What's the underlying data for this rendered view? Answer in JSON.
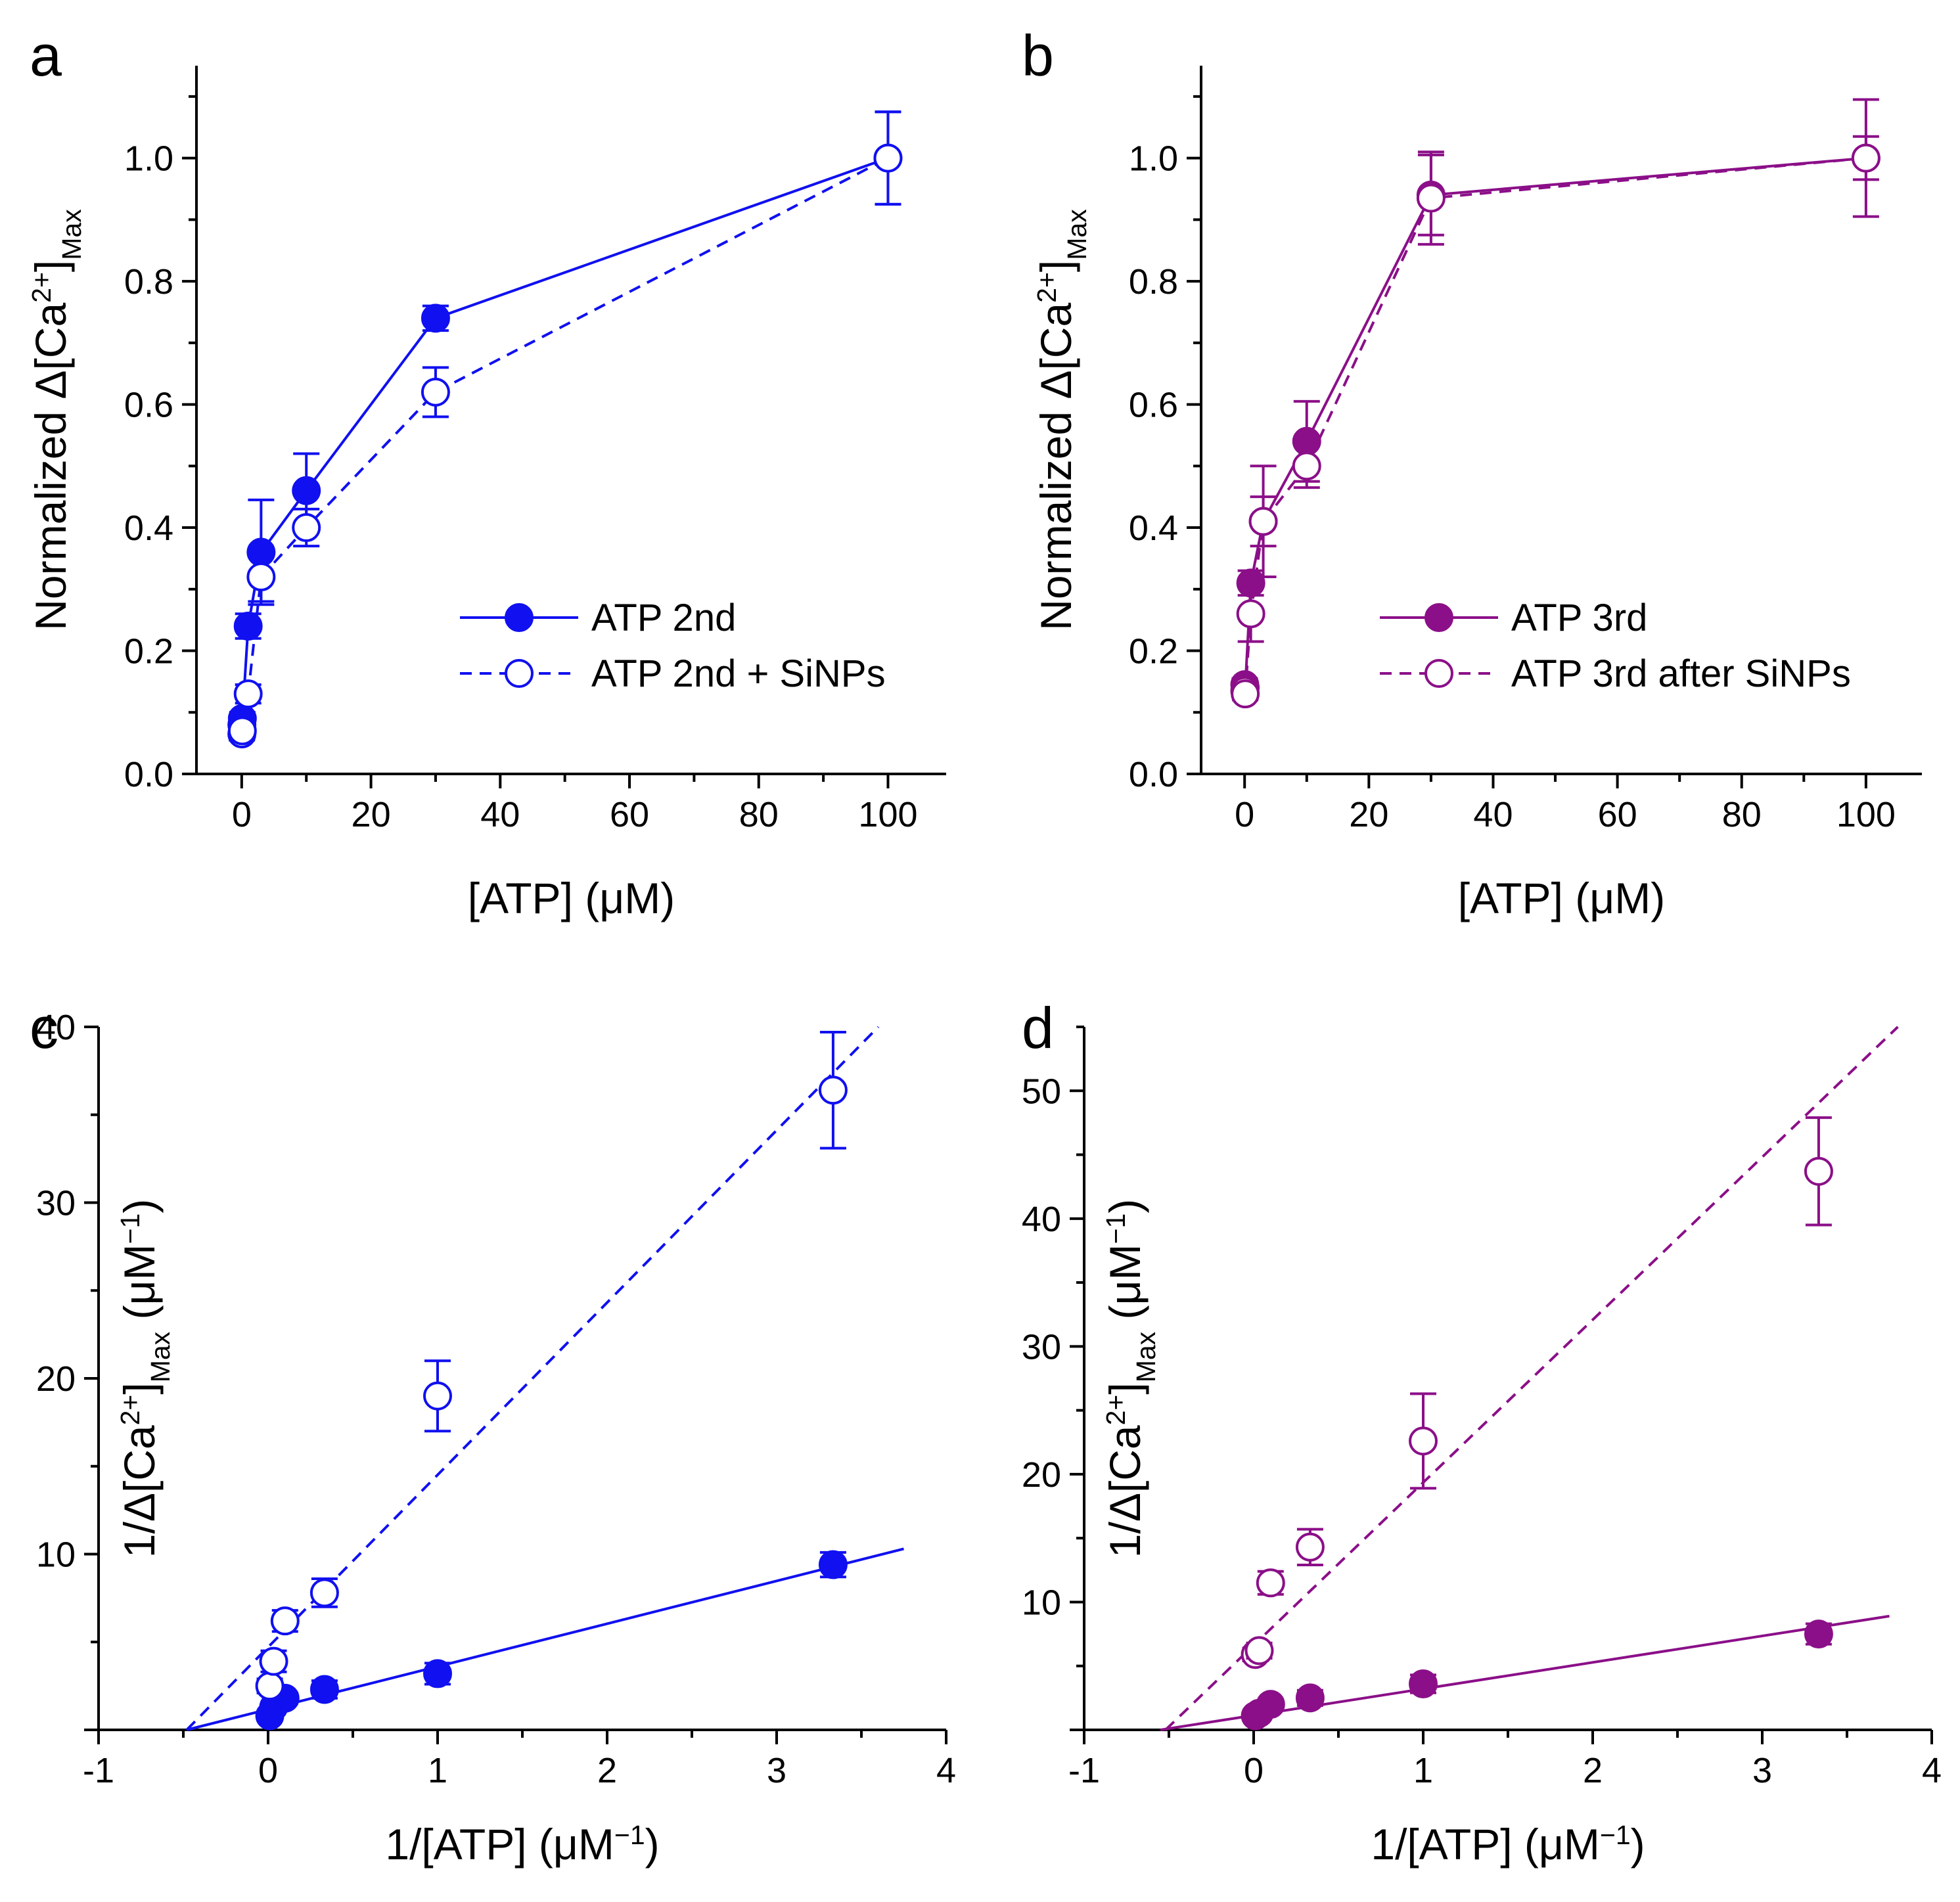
{
  "chart_data": [
    {
      "panel": "a",
      "type": "line",
      "title": "",
      "xlabel": "[ATP] (μM)",
      "ylabel_parts": [
        "Normalized Δ[Ca",
        "2+",
        "]",
        "Max"
      ],
      "xlim": [
        -7,
        109
      ],
      "ylim": [
        0,
        1.15
      ],
      "xticks": [
        0,
        20,
        40,
        60,
        80,
        100
      ],
      "xtick_labels": [
        "0",
        "20",
        "40",
        "60",
        "80",
        "100"
      ],
      "yticks": [
        0,
        0.2,
        0.4,
        0.6,
        0.8,
        1.0
      ],
      "ytick_labels": [
        "0.0",
        "0.2",
        "0.4",
        "0.6",
        "0.8",
        "1.0"
      ],
      "legend_position": "middle-right",
      "color": "#1010f0",
      "series": [
        {
          "name": "ATP 2nd",
          "marker": "filled-circle",
          "line": "solid",
          "x": [
            0.03,
            0.1,
            1,
            3,
            10,
            30,
            100
          ],
          "y": [
            0.08,
            0.09,
            0.24,
            0.36,
            0.46,
            0.74,
            1.0
          ],
          "err": [
            0.01,
            0.01,
            0.02,
            0.085,
            0.06,
            0.02,
            0.075
          ]
        },
        {
          "name": "ATP 2nd + SiNPs",
          "marker": "open-circle",
          "line": "dashed",
          "x": [
            0.03,
            0.1,
            1,
            3,
            10,
            30,
            100
          ],
          "y": [
            0.065,
            0.07,
            0.13,
            0.32,
            0.4,
            0.62,
            1.0
          ],
          "err": [
            0.01,
            0.01,
            0.015,
            0.04,
            0.03,
            0.04,
            0.075
          ]
        }
      ],
      "fit_lines": []
    },
    {
      "panel": "b",
      "type": "line",
      "title": "",
      "xlabel": "[ATP] (μM)",
      "ylabel_parts": [
        "Normalized Δ[Ca",
        "2+",
        "]",
        "Max"
      ],
      "xlim": [
        -7,
        109
      ],
      "ylim": [
        0,
        1.15
      ],
      "xticks": [
        0,
        20,
        40,
        60,
        80,
        100
      ],
      "xtick_labels": [
        "0",
        "20",
        "40",
        "60",
        "80",
        "100"
      ],
      "yticks": [
        0,
        0.2,
        0.4,
        0.6,
        0.8,
        1.0
      ],
      "ytick_labels": [
        "0.0",
        "0.2",
        "0.4",
        "0.6",
        "0.8",
        "1.0"
      ],
      "legend_position": "middle-right",
      "color": "#8b0f88",
      "series": [
        {
          "name": "ATP 3rd",
          "marker": "filled-circle",
          "line": "solid",
          "x": [
            0.03,
            0.1,
            1,
            3,
            10,
            30,
            100
          ],
          "y": [
            0.145,
            0.14,
            0.31,
            0.41,
            0.54,
            0.94,
            1.0
          ],
          "err": [
            0.01,
            0.01,
            0.02,
            0.04,
            0.065,
            0.065,
            0.035
          ]
        },
        {
          "name": "ATP 3rd after SiNPs",
          "marker": "open-circle",
          "line": "dashed",
          "x": [
            0.03,
            0.1,
            1,
            3,
            10,
            30,
            100
          ],
          "y": [
            0.135,
            0.13,
            0.26,
            0.41,
            0.5,
            0.935,
            1.0
          ],
          "err": [
            0.01,
            0.01,
            0.045,
            0.09,
            0.035,
            0.075,
            0.095
          ]
        }
      ],
      "fit_lines": []
    },
    {
      "panel": "c",
      "type": "scatter",
      "title": "",
      "xlabel_parts": [
        "1/[ATP] (μM",
        "−1",
        ")"
      ],
      "ylabel_parts": [
        "1/Δ[Ca",
        "2+",
        "]",
        "Max",
        " (μM",
        "−1",
        ")"
      ],
      "xlim": [
        -1,
        4
      ],
      "ylim": [
        0,
        40
      ],
      "xticks": [
        -1,
        0,
        1,
        2,
        3,
        4
      ],
      "xtick_labels": [
        "-1",
        "0",
        "1",
        "2",
        "3",
        "4"
      ],
      "yticks": [
        10,
        20,
        30,
        40
      ],
      "ytick_labels": [
        "10",
        "20",
        "30",
        "40"
      ],
      "color": "#1010f0",
      "series": [
        {
          "name": "ATP 2nd",
          "marker": "filled-circle",
          "x": [
            0.01,
            0.033,
            0.1,
            0.333,
            1,
            3.333
          ],
          "y": [
            0.8,
            1.3,
            1.8,
            2.3,
            3.2,
            9.4
          ],
          "err": [
            0.2,
            0.25,
            0.3,
            0.5,
            0.6,
            0.7
          ]
        },
        {
          "name": "ATP 2nd + SiNPs",
          "marker": "open-circle",
          "x": [
            0.01,
            0.033,
            0.1,
            0.333,
            1,
            3.333
          ],
          "y": [
            2.5,
            3.9,
            6.2,
            7.8,
            19.0,
            36.4
          ],
          "err": [
            0.4,
            0.6,
            0.6,
            0.8,
            2.0,
            3.3
          ]
        }
      ],
      "fit_lines": [
        {
          "name": "ATP 2nd fit",
          "line": "solid",
          "x": [
            -0.48,
            3.75
          ],
          "y": [
            0,
            10.3
          ]
        },
        {
          "name": "ATP 2nd + SiNPs fit",
          "line": "dashed",
          "x": [
            -0.48,
            3.6
          ],
          "y": [
            0,
            40
          ]
        }
      ]
    },
    {
      "panel": "d",
      "type": "scatter",
      "title": "",
      "xlabel_parts": [
        "1/[ATP] (μM",
        "−1",
        ")"
      ],
      "ylabel_parts": [
        "1/Δ[Ca",
        "2+",
        "]",
        "Max",
        " (μM",
        "−1",
        ")"
      ],
      "xlim": [
        -1,
        4
      ],
      "ylim": [
        0,
        55
      ],
      "xticks": [
        -1,
        0,
        1,
        2,
        3,
        4
      ],
      "xtick_labels": [
        "-1",
        "0",
        "1",
        "2",
        "3",
        "4"
      ],
      "yticks": [
        10,
        20,
        30,
        40,
        50
      ],
      "ytick_labels": [
        "10",
        "20",
        "30",
        "40",
        "50"
      ],
      "color": "#8b0f88",
      "series": [
        {
          "name": "ATP 3rd",
          "marker": "filled-circle",
          "x": [
            0.01,
            0.033,
            0.1,
            0.333,
            1,
            3.333
          ],
          "y": [
            1.1,
            1.3,
            2.0,
            2.5,
            3.6,
            7.5
          ],
          "err": [
            0.2,
            0.3,
            0.4,
            0.6,
            0.7,
            0.8
          ]
        },
        {
          "name": "ATP 3rd after SiNPs",
          "marker": "open-circle",
          "x": [
            0.01,
            0.033,
            0.1,
            0.333,
            1,
            3.333
          ],
          "y": [
            5.9,
            6.2,
            11.5,
            14.3,
            22.6,
            43.7
          ],
          "err": [
            0.5,
            0.6,
            0.9,
            1.4,
            3.7,
            4.2
          ]
        }
      ],
      "fit_lines": [
        {
          "name": "ATP 3rd fit",
          "line": "solid",
          "x": [
            -0.55,
            3.75
          ],
          "y": [
            0,
            8.9
          ]
        },
        {
          "name": "ATP 3rd after SiNPs fit",
          "line": "dashed",
          "x": [
            -0.52,
            3.8
          ],
          "y": [
            0,
            55
          ]
        }
      ]
    }
  ]
}
